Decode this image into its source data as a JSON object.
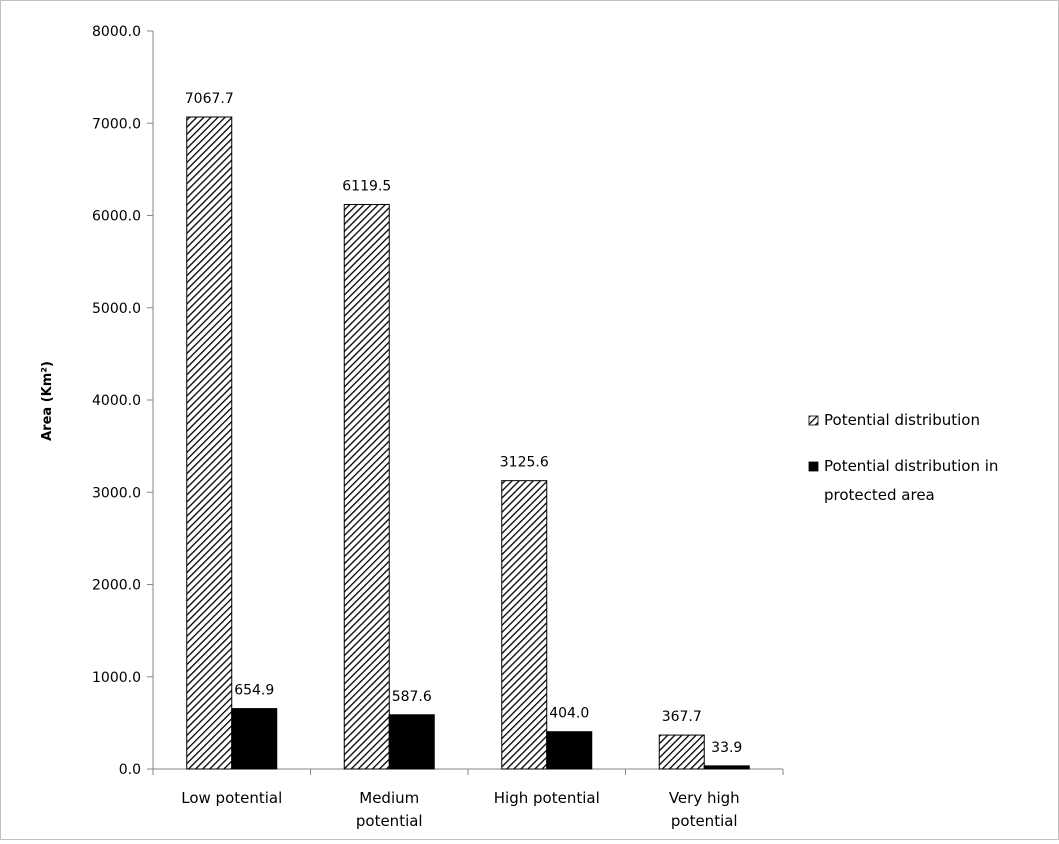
{
  "chart_data": {
    "type": "bar",
    "title": "",
    "xlabel": "",
    "ylabel": "Area (Km²)",
    "ylim": [
      0,
      8000
    ],
    "yticks": [
      "0.0",
      "1000.0",
      "2000.0",
      "3000.0",
      "4000.0",
      "5000.0",
      "6000.0",
      "7000.0",
      "8000.0"
    ],
    "ytick_values": [
      0,
      1000,
      2000,
      3000,
      4000,
      5000,
      6000,
      7000,
      8000
    ],
    "categories": [
      [
        "Low potential"
      ],
      [
        "Medium",
        "potential"
      ],
      [
        "High potential"
      ],
      [
        "Very high",
        "potential"
      ]
    ],
    "series": [
      {
        "name": "Potential distribution",
        "values": [
          7067.7,
          6119.5,
          3125.6,
          367.7
        ],
        "labels": [
          "7067.7",
          "6119.5",
          "3125.6",
          "367.7"
        ],
        "fill": "hatch-diagonal"
      },
      {
        "name": "Potential distribution in protected area",
        "name_lines": [
          "Potential distribution in",
          "protected area"
        ],
        "values": [
          654.9,
          587.6,
          404.0,
          33.9
        ],
        "labels": [
          "654.9",
          "587.6",
          "404.0",
          "33.9"
        ],
        "fill": "#000000"
      }
    ],
    "grid": false,
    "legend": "right"
  }
}
